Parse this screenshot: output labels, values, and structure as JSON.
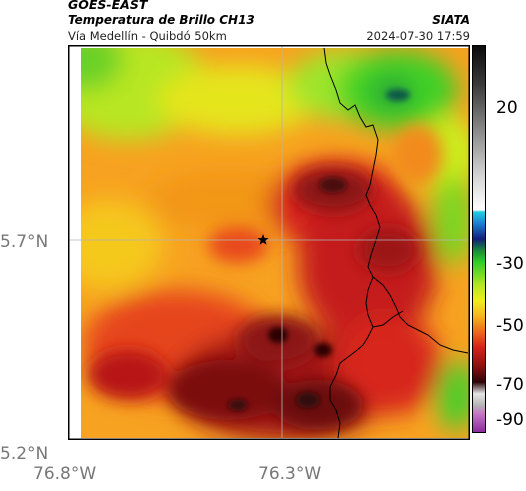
{
  "header": {
    "satellite": "GOES-EAST",
    "product": "Temperatura de Brillo CH13",
    "route": "Vía Medellín - Quibdó 50km",
    "org": "SIATA",
    "datetime": "2024-07-30 17:59"
  },
  "axes": {
    "lat_labels": [
      "5.7°N",
      "5.2°N"
    ],
    "lon_labels": [
      "76.8°W",
      "76.3°W"
    ]
  },
  "colorbar": {
    "labels": [
      "20",
      "-30",
      "-50",
      "-70",
      "-90"
    ]
  },
  "colors": {
    "gridline": "#b4b4b4",
    "border_line": "#000000",
    "frame": "#000000"
  }
}
